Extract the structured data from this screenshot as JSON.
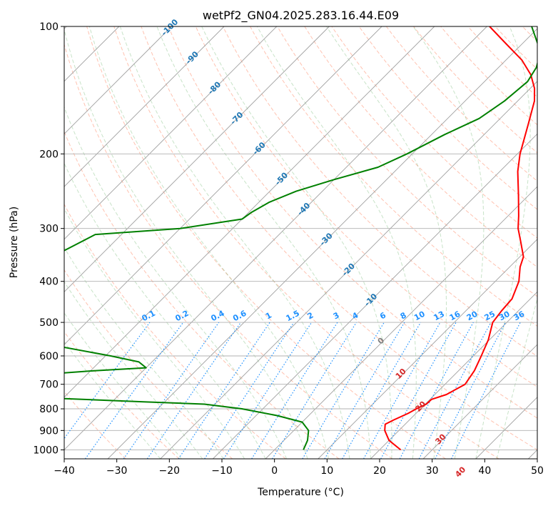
{
  "chart_data": {
    "type": "line",
    "title": "wetPf2_GN04.2025.283.16.44.E09",
    "xlabel": "Temperature (°C)",
    "ylabel": "Pressure (hPa)",
    "xlim": [
      -40,
      50
    ],
    "ylim": [
      1050,
      100
    ],
    "y_scale": "log",
    "x_ticks": [
      -40,
      -30,
      -20,
      -10,
      0,
      10,
      20,
      30,
      40,
      50
    ],
    "x_tick_labels": [
      "−40",
      "−30",
      "−20",
      "−10",
      "0",
      "10",
      "20",
      "30",
      "40",
      "50"
    ],
    "y_ticks": [
      100,
      200,
      300,
      400,
      500,
      600,
      700,
      800,
      900,
      1000
    ],
    "y_tick_labels": [
      "100",
      "200",
      "300",
      "400",
      "500",
      "600",
      "700",
      "800",
      "900",
      "1000"
    ],
    "grid": true,
    "series": [
      {
        "kind": "temperature",
        "color": "#ff0000",
        "points": [
          {
            "p": 1000,
            "t": 24.0
          },
          {
            "p": 950,
            "t": 20.0
          },
          {
            "p": 900,
            "t": 17.3
          },
          {
            "p": 870,
            "t": 16.2
          },
          {
            "p": 850,
            "t": 17.0
          },
          {
            "p": 820,
            "t": 18.5
          },
          {
            "p": 800,
            "t": 19.2
          },
          {
            "p": 780,
            "t": 20.2
          },
          {
            "p": 760,
            "t": 20.3
          },
          {
            "p": 740,
            "t": 22.2
          },
          {
            "p": 700,
            "t": 23.8
          },
          {
            "p": 650,
            "t": 23.0
          },
          {
            "p": 600,
            "t": 21.5
          },
          {
            "p": 550,
            "t": 19.8
          },
          {
            "p": 500,
            "t": 17.3
          },
          {
            "p": 470,
            "t": 16.8
          },
          {
            "p": 440,
            "t": 16.5
          },
          {
            "p": 400,
            "t": 14.5
          },
          {
            "p": 370,
            "t": 12.0
          },
          {
            "p": 350,
            "t": 10.7
          },
          {
            "p": 320,
            "t": 7.0
          },
          {
            "p": 300,
            "t": 4.3
          },
          {
            "p": 280,
            "t": 2.0
          },
          {
            "p": 250,
            "t": -2.0
          },
          {
            "p": 220,
            "t": -6.6
          },
          {
            "p": 200,
            "t": -9.5
          },
          {
            "p": 170,
            "t": -13.6
          },
          {
            "p": 150,
            "t": -16.8
          },
          {
            "p": 140,
            "t": -19.2
          },
          {
            "p": 130,
            "t": -22.5
          },
          {
            "p": 120,
            "t": -27.0
          },
          {
            "p": 110,
            "t": -33.0
          },
          {
            "p": 100,
            "t": -39.5
          }
        ]
      },
      {
        "kind": "dewpoint",
        "color": "#008000",
        "points": [
          {
            "p": 1000,
            "t": 5.5
          },
          {
            "p": 950,
            "t": 4.5
          },
          {
            "p": 900,
            "t": 2.8
          },
          {
            "p": 860,
            "t": 0.0
          },
          {
            "p": 830,
            "t": -6.0
          },
          {
            "p": 800,
            "t": -14.0
          },
          {
            "p": 780,
            "t": -22.0
          },
          {
            "p": 770,
            "t": -34.0
          },
          {
            "p": 750,
            "t": -58.0
          },
          {
            "p": 720,
            "t": -78.0
          },
          {
            "p": 700,
            "t": -90.0
          },
          {
            "p": 680,
            "t": -72.0
          },
          {
            "p": 660,
            "t": -56.0
          },
          {
            "p": 650,
            "t": -49.0
          },
          {
            "p": 640,
            "t": -40.0
          },
          {
            "p": 620,
            "t": -42.5
          },
          {
            "p": 600,
            "t": -49.0
          },
          {
            "p": 570,
            "t": -60.5
          },
          {
            "p": 540,
            "t": -76.0
          },
          {
            "p": 520,
            "t": -74.0
          },
          {
            "p": 510,
            "t": -81.0
          },
          {
            "p": 500,
            "t": -88.0
          },
          {
            "p": 460,
            "t": -90.0
          },
          {
            "p": 440,
            "t": -88.0
          },
          {
            "p": 420,
            "t": -73.0
          },
          {
            "p": 410,
            "t": -84.0
          },
          {
            "p": 400,
            "t": -86.0
          },
          {
            "p": 370,
            "t": -80.0
          },
          {
            "p": 340,
            "t": -78.0
          },
          {
            "p": 310,
            "t": -75.0
          },
          {
            "p": 300,
            "t": -60.0
          },
          {
            "p": 285,
            "t": -50.0
          },
          {
            "p": 275,
            "t": -49.5
          },
          {
            "p": 260,
            "t": -48.0
          },
          {
            "p": 245,
            "t": -45.0
          },
          {
            "p": 230,
            "t": -40.0
          },
          {
            "p": 215,
            "t": -34.0
          },
          {
            "p": 200,
            "t": -31.0
          },
          {
            "p": 180,
            "t": -27.5
          },
          {
            "p": 165,
            "t": -24.0
          },
          {
            "p": 150,
            "t": -22.5
          },
          {
            "p": 135,
            "t": -21.8
          },
          {
            "p": 125,
            "t": -22.8
          },
          {
            "p": 118,
            "t": -24.3
          },
          {
            "p": 110,
            "t": -27.0
          },
          {
            "p": 100,
            "t": -31.5
          }
        ]
      }
    ],
    "isotherm_labels": [
      "-100",
      "-90",
      "-80",
      "-70",
      "-60",
      "-50",
      "-40",
      "-30",
      "-20",
      "-10"
    ],
    "mixing_ratio_labels": [
      "0.1",
      "0.2",
      "0.4",
      "0.6",
      "1",
      "1.5",
      "2",
      "3",
      "4",
      "6",
      "8",
      "10",
      "13",
      "16",
      "20",
      "25",
      "30",
      "36"
    ],
    "dry_adiabat_labels": [
      "0",
      "10",
      "20",
      "30",
      "40"
    ],
    "colors": {
      "isotherm_label": "#1f77b4",
      "mixing_ratio_label": "#1e90ff",
      "mixing_ratio_line": "#1e90ff",
      "dry_adiabat_line": "#ff9070",
      "dry_adiabat_label": "#d62728",
      "moist_adiabat_line": "#60b060",
      "skew_line": "#a0a0a0",
      "grid": "#b0b0b0"
    }
  }
}
